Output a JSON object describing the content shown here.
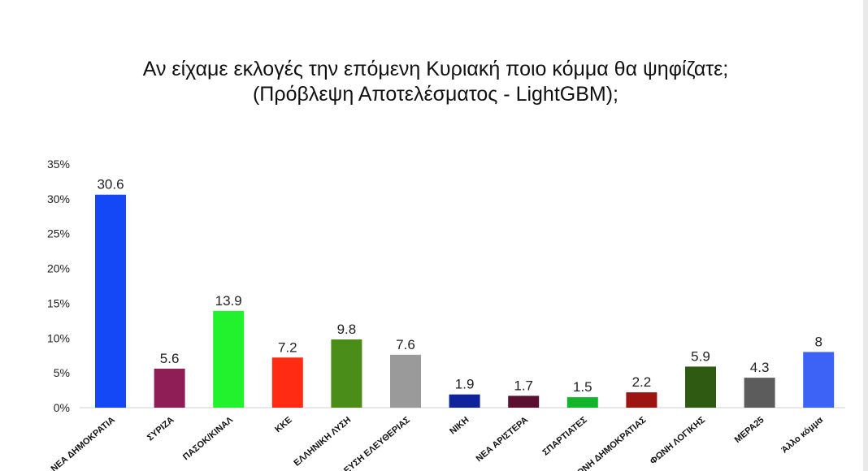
{
  "chart_data": {
    "type": "bar",
    "title": "Αν είχαμε εκλογές την επόμενη Κυριακή ποιο κόμμα θα ψηφίζατε;",
    "subtitle": "(Πρόβλεψη Αποτελέσματος - LightGBM);",
    "categories": [
      "ΝΕΑ ΔΗΜΟΚΡΑΤΙΑ",
      "ΣΥΡΙΖΑ",
      "ΠΑΣΟΚ/ΚΙΝΑΛ",
      "ΚΚΕ",
      "ΕΛΛΗΝΙΚΗ ΛΥΣΗ",
      "ΠΛΕΥΣΗ ΕΛΕΥΘΕΡΙΑΣ",
      "ΝΙΚΗ",
      "ΝΕΑ ΑΡΙΣΤΕΡΑ",
      "ΣΠΑΡΤΙΑΤΕΣ",
      "ΦΩΝΗ ΔΗΜΟΚΡΑΤΙΑΣ",
      "ΦΩΝΗ ΛΟΓΙΚΗΣ",
      "ΜΕΡΑ25",
      "Άλλο κόμμα"
    ],
    "values": [
      30.6,
      5.6,
      13.9,
      7.2,
      9.8,
      7.6,
      1.9,
      1.7,
      1.5,
      2.2,
      5.9,
      4.3,
      8
    ],
    "value_labels": [
      "30.6",
      "5.6",
      "13.9",
      "7.2",
      "9.8",
      "7.6",
      "1.9",
      "1.7",
      "1.5",
      "2.2",
      "5.9",
      "4.3",
      "8"
    ],
    "colors": [
      "#1447f5",
      "#8e1e55",
      "#22f22d",
      "#ff2b12",
      "#4a8d18",
      "#9a9a9a",
      "#0f239a",
      "#5c1031",
      "#12b52a",
      "#9c1510",
      "#2e5a12",
      "#5c5c5c",
      "#3c63f6"
    ],
    "y_ticks": [
      "0%",
      "5%",
      "10%",
      "15%",
      "20%",
      "25%",
      "30%",
      "35%"
    ],
    "ylim": [
      0,
      35
    ],
    "xlabel": "",
    "ylabel": "",
    "grid": false,
    "legend": "none"
  }
}
